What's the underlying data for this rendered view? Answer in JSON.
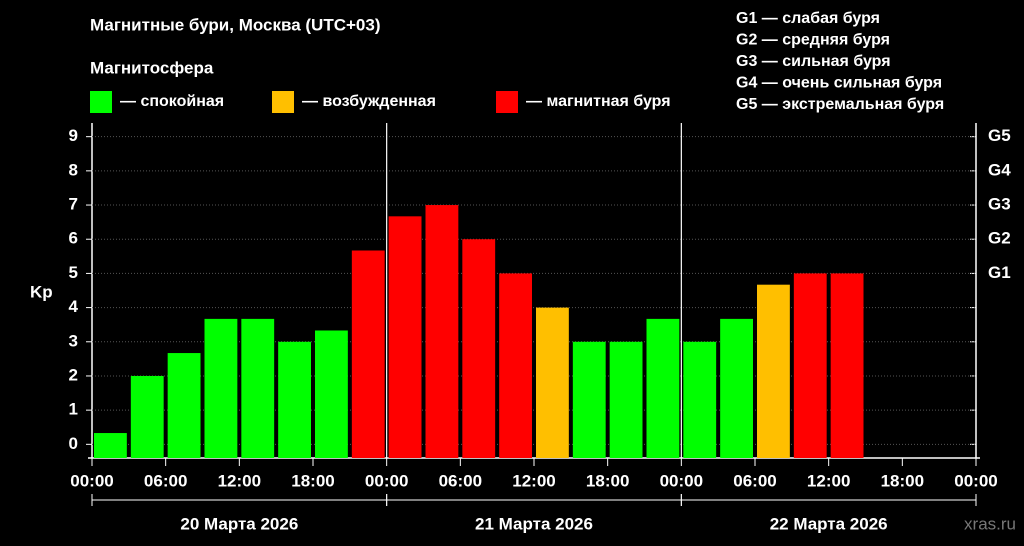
{
  "chart_data": {
    "type": "bar",
    "title": "Магнитные бури, Москва (UTC+03)",
    "legend_title": "Магнитосфера",
    "legend": [
      {
        "name": "— спокойная",
        "color": "#00ff00"
      },
      {
        "name": "— возбужденная",
        "color": "#ffbf00"
      },
      {
        "name": "— магнитная буря",
        "color": "#ff0000"
      }
    ],
    "scale_legend": [
      "G1 — слабая буря",
      "G2 — средняя буря",
      "G3 — сильная буря",
      "G4 — очень сильная буря",
      "G5 — экстремальная буря"
    ],
    "ylabel": "Kp",
    "x": [
      0,
      3,
      6,
      9,
      12,
      15,
      18,
      21,
      24,
      27,
      30,
      33,
      36,
      39,
      42,
      45,
      48,
      51,
      54,
      57,
      60,
      63,
      66,
      69
    ],
    "values": [
      0.33,
      2,
      2.67,
      3.67,
      3.67,
      3,
      3.33,
      5.67,
      6.67,
      7,
      6,
      5,
      4,
      3,
      3,
      3.67,
      3,
      3.67,
      4.67,
      5,
      5,
      null,
      null,
      null
    ],
    "colors": [
      "#00ff00",
      "#00ff00",
      "#00ff00",
      "#00ff00",
      "#00ff00",
      "#00ff00",
      "#00ff00",
      "#ff0000",
      "#ff0000",
      "#ff0000",
      "#ff0000",
      "#ff0000",
      "#ffbf00",
      "#00ff00",
      "#00ff00",
      "#00ff00",
      "#00ff00",
      "#00ff00",
      "#ffbf00",
      "#ff0000",
      "#ff0000",
      null,
      null,
      null
    ],
    "bar_hours": 3,
    "xlim": [
      0,
      72
    ],
    "xticks": [
      {
        "value": 0,
        "label": "00:00"
      },
      {
        "value": 6,
        "label": "06:00"
      },
      {
        "value": 12,
        "label": "12:00"
      },
      {
        "value": 18,
        "label": "18:00"
      },
      {
        "value": 24,
        "label": "00:00"
      },
      {
        "value": 30,
        "label": "06:00"
      },
      {
        "value": 36,
        "label": "12:00"
      },
      {
        "value": 42,
        "label": "18:00"
      },
      {
        "value": 48,
        "label": "00:00"
      },
      {
        "value": 54,
        "label": "06:00"
      },
      {
        "value": 60,
        "label": "12:00"
      },
      {
        "value": 66,
        "label": "18:00"
      },
      {
        "value": 72,
        "label": "00:00"
      }
    ],
    "days": [
      "20 Марта 2026",
      "21 Марта 2026",
      "22 Марта 2026"
    ],
    "ylim": [
      -0.4,
      9.4
    ],
    "yticks": [
      0,
      1,
      2,
      3,
      4,
      5,
      6,
      7,
      8,
      9
    ],
    "y2ticks": [
      {
        "value": 5,
        "label": "G1"
      },
      {
        "value": 6,
        "label": "G2"
      },
      {
        "value": 7,
        "label": "G3"
      },
      {
        "value": 8,
        "label": "G4"
      },
      {
        "value": 9,
        "label": "G5"
      }
    ],
    "grid": true,
    "watermark": "xras.ru"
  }
}
